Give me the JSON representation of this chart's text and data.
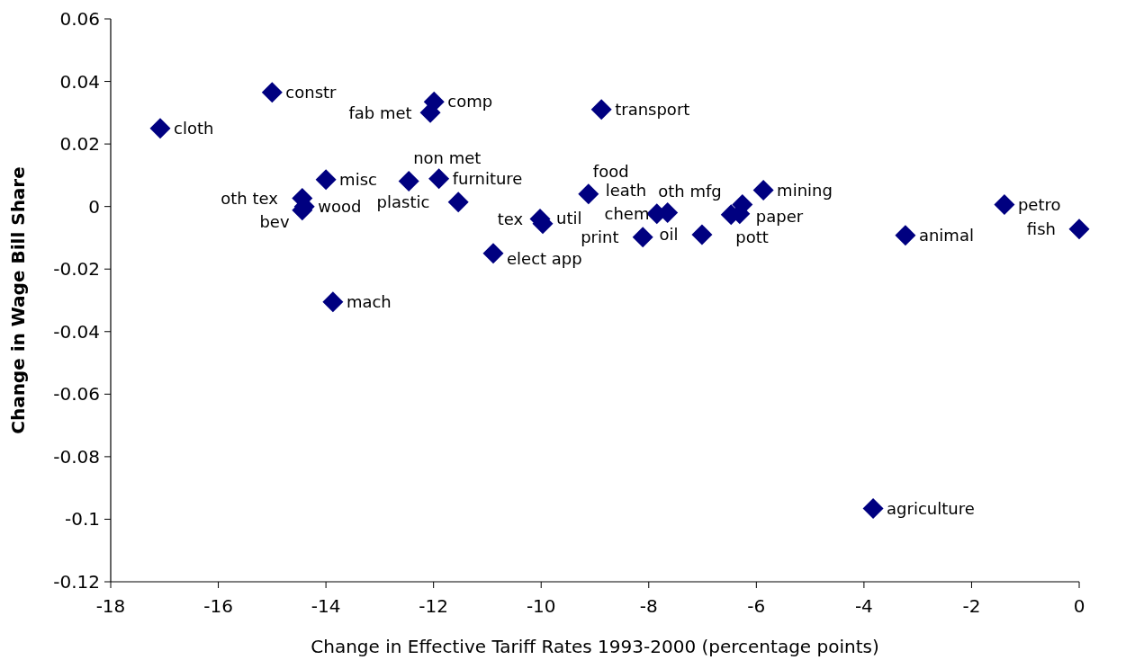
{
  "chart_data": {
    "type": "scatter",
    "xlabel": "Change in Effective Tariff Rates 1993-2000 (percentage points)",
    "ylabel": "Change in Wage Bill Share",
    "xlim": [
      -18,
      0
    ],
    "xticks": [
      -18,
      -16,
      -14,
      -12,
      -10,
      -8,
      -6,
      -4,
      -2,
      0
    ],
    "ylim": [
      -0.12,
      0.06
    ],
    "yticks": [
      -0.12,
      -0.1,
      -0.08,
      -0.06,
      -0.04,
      -0.02,
      0,
      0.02,
      0.04,
      0.06
    ],
    "grid": false,
    "marker": "diamond",
    "series": [
      {
        "color": "#000080",
        "x": [
          -17.08,
          -15.0,
          -11.99,
          -12.06,
          -8.88,
          -14.0,
          -14.44,
          -14.4,
          -14.44,
          -12.46,
          -11.9,
          -11.54,
          -9.12,
          -10.02,
          -9.97,
          -10.89,
          -13.87,
          -7.85,
          -7.65,
          -8.11,
          -7.01,
          -6.47,
          -6.31,
          -6.26,
          -5.87,
          -3.23,
          -1.39,
          0.0,
          -3.83
        ],
        "values": [
          0.025,
          0.0365,
          0.0335,
          0.03,
          0.031,
          0.0086,
          0.0026,
          0.0,
          -0.0012,
          0.0081,
          0.0089,
          0.0014,
          0.004,
          -0.004,
          -0.0055,
          -0.015,
          -0.0305,
          -0.0023,
          -0.002,
          -0.0098,
          -0.009,
          -0.0026,
          -0.0023,
          0.0006,
          0.0052,
          -0.0092,
          0.0006,
          -0.0072,
          -0.0966
        ],
        "value_labels": [
          "cloth",
          "constr",
          "comp",
          "fab met",
          "transport",
          "misc",
          "oth tex",
          "wood",
          "bev",
          "non met",
          "furniture",
          "plastic",
          "food",
          "tex",
          "util",
          "elect app",
          "mach",
          "chem",
          "leath",
          "print",
          "oil",
          "pott",
          "oth mfg",
          "paper",
          "mining",
          "animal",
          "petro",
          "fish",
          "agriculture"
        ]
      }
    ]
  }
}
